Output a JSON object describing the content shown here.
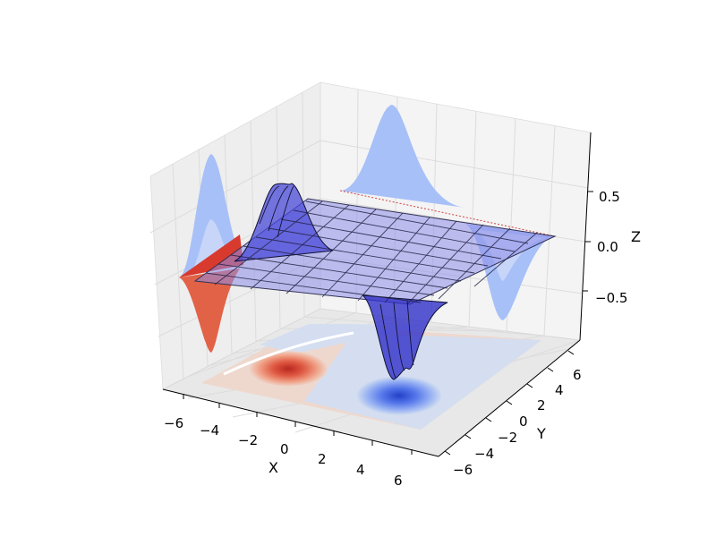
{
  "chart_data": {
    "type": "surface3d",
    "title": "",
    "xlabel": "X",
    "ylabel": "Y",
    "zlabel": "Z",
    "x_ticks": [
      "−6",
      "−4",
      "−2",
      "0",
      "2",
      "4",
      "6"
    ],
    "y_ticks": [
      "−6",
      "−4",
      "−2",
      "0",
      "2",
      "4",
      "6"
    ],
    "z_ticks": [
      "−0.5",
      "0.0",
      "0.5"
    ],
    "xlim": [
      -6,
      6
    ],
    "ylim": [
      -6,
      6
    ],
    "zlim": [
      -0.9,
      0.9
    ],
    "grid": true,
    "surface": {
      "function": "difference of two gaussians",
      "peak": {
        "x": -1.5,
        "y": 0.0,
        "z": 0.7
      },
      "trough": {
        "x": 1.5,
        "y": 0.0,
        "z": -0.8
      },
      "x_range": [
        -6,
        6
      ],
      "y_range": [
        -6,
        6
      ],
      "colormap": "coolwarm"
    },
    "colors": {
      "surface_fill": "#7777ee",
      "surface_edge": "#000033",
      "contour_positive": "#d62f26",
      "contour_negative": "#3b5fe0",
      "contour_background_warm": "#eed8ce",
      "contour_background_cool": "#d4def0",
      "pane": "#f2f2f2",
      "grid": "#e2e2e2"
    }
  }
}
